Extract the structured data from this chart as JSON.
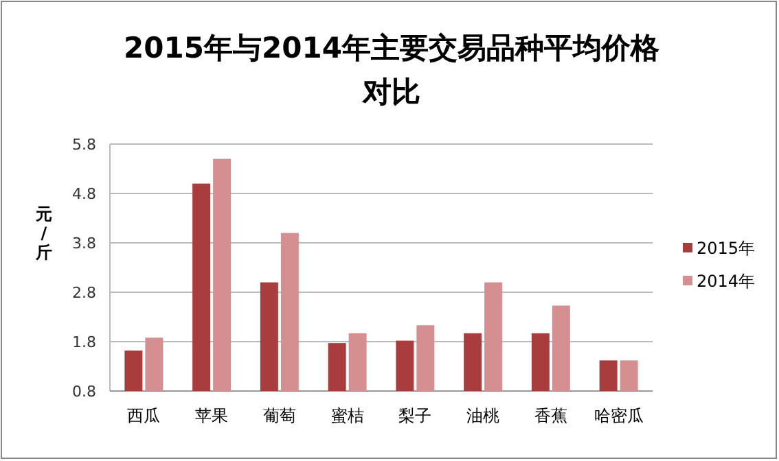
{
  "chart_data": {
    "type": "bar",
    "title": "2015年与2014年主要交易品种平均价格对比",
    "ylabel": "元/斤",
    "categories": [
      "西瓜",
      "苹果",
      "葡萄",
      "蜜桔",
      "梨子",
      "油桃",
      "香蕉",
      "哈密瓜"
    ],
    "series": [
      {
        "name": "2015年",
        "color": "#a93d3e",
        "values": [
          1.62,
          5.0,
          3.0,
          1.77,
          1.82,
          1.97,
          1.97,
          1.42
        ]
      },
      {
        "name": "2014年",
        "color": "#d58f90",
        "values": [
          1.88,
          5.5,
          4.0,
          1.97,
          2.13,
          3.0,
          2.53,
          1.42
        ]
      }
    ],
    "ylim": [
      0.8,
      5.8
    ],
    "yticks": [
      0.8,
      1.8,
      2.8,
      3.8,
      4.8,
      5.8
    ],
    "grid": "y",
    "legend": "right"
  }
}
